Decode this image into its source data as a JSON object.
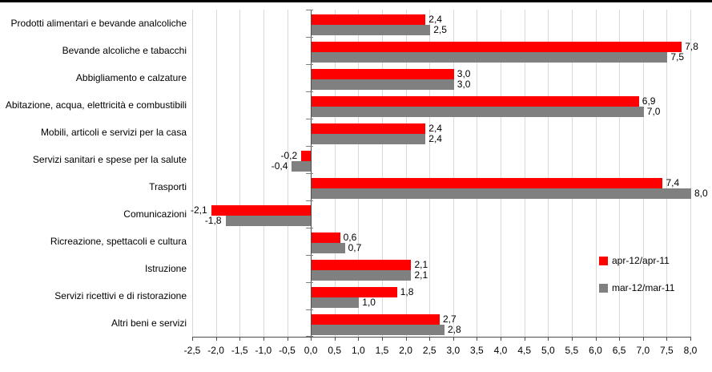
{
  "chart_data": {
    "type": "bar",
    "orientation": "horizontal",
    "title": "",
    "categories": [
      "Prodotti alimentari e bevande analcoliche",
      "Bevande alcoliche e tabacchi",
      "Abbigliamento e calzature",
      "Abitazione, acqua, elettricità e combustibili",
      "Mobili, articoli e servizi per la casa",
      "Servizi sanitari e spese per la salute",
      "Trasporti",
      "Comunicazioni",
      "Ricreazione, spettacoli e cultura",
      "Istruzione",
      "Servizi ricettivi e di ristorazione",
      "Altri beni e servizi"
    ],
    "series": [
      {
        "name": "apr-12/apr-11",
        "color": "#ff0000",
        "values": [
          2.4,
          7.8,
          3.0,
          6.9,
          2.4,
          -0.2,
          7.4,
          -2.1,
          0.6,
          2.1,
          1.8,
          2.7
        ],
        "value_labels": [
          "2,4",
          "7,8",
          "3,0",
          "6,9",
          "2,4",
          "-0,2",
          "7,4",
          "-2,1",
          "0,6",
          "2,1",
          "1,8",
          "2,7"
        ]
      },
      {
        "name": "mar-12/mar-11",
        "color": "#808080",
        "values": [
          2.5,
          7.5,
          3.0,
          7.0,
          2.4,
          -0.4,
          8.0,
          -1.8,
          0.7,
          2.1,
          1.0,
          2.8
        ],
        "value_labels": [
          "2,5",
          "7,5",
          "3,0",
          "7,0",
          "2,4",
          "-0,4",
          "8,0",
          "-1,8",
          "0,7",
          "2,1",
          "1,0",
          "2,8"
        ]
      }
    ],
    "xlim": [
      -2.5,
      8.0
    ],
    "xtick_step": 0.5,
    "xtick_labels": [
      "-2,5",
      "-2,0",
      "-1,5",
      "-1,0",
      "-0,5",
      "0,0",
      "0,5",
      "1,0",
      "1,5",
      "2,0",
      "2,5",
      "3,0",
      "3,5",
      "4,0",
      "4,5",
      "5,0",
      "5,5",
      "6,0",
      "6,5",
      "7,0",
      "7,5",
      "8,0"
    ],
    "grid": "vertical",
    "legend_position": "inside-right",
    "gridline_color": "#d9d9d9",
    "axis_color": "#4d4d4d",
    "value_label_color": "#000000"
  }
}
